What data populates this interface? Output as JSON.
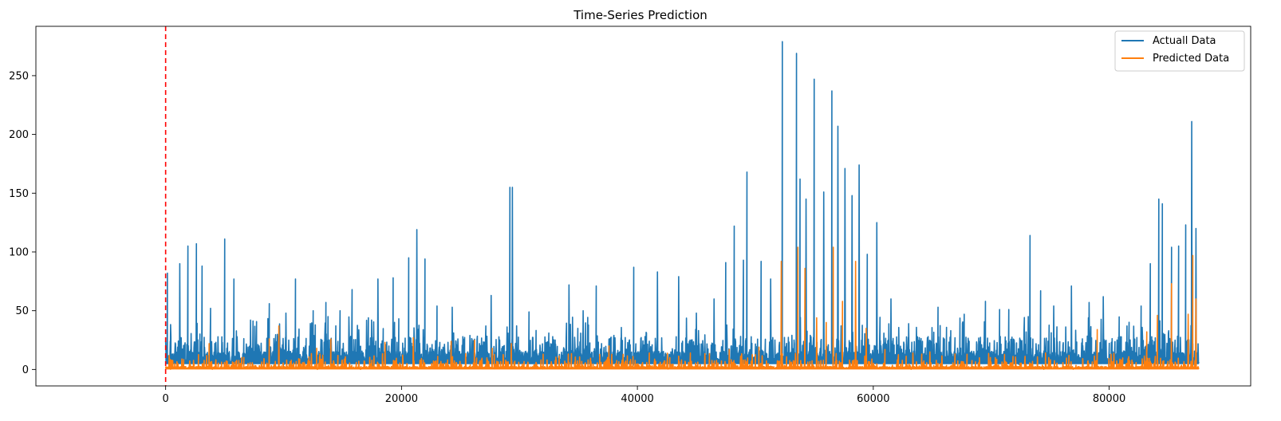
{
  "chart_data": {
    "type": "line",
    "title": "Time-Series Prediction",
    "xlabel": "",
    "ylabel": "",
    "xlim": [
      -11000,
      92000
    ],
    "ylim": [
      -14,
      292
    ],
    "x_ticks": [
      0,
      20000,
      40000,
      60000,
      80000
    ],
    "y_ticks": [
      0,
      50,
      100,
      150,
      200,
      250
    ],
    "grid": false,
    "legend_position": "top-right",
    "vline": {
      "x": 0,
      "color": "#ff0000",
      "style": "dashed"
    },
    "series": [
      {
        "name": "Actuall Data",
        "color": "#1f77b4",
        "x_range": [
          0,
          87600
        ],
        "baseline": 5,
        "noise_band": [
          3,
          45
        ],
        "peaks": [
          [
            150,
            82
          ],
          [
            1200,
            90
          ],
          [
            1900,
            105
          ],
          [
            2600,
            107
          ],
          [
            3100,
            88
          ],
          [
            3800,
            52
          ],
          [
            5000,
            111
          ],
          [
            5800,
            77
          ],
          [
            7200,
            42
          ],
          [
            8800,
            56
          ],
          [
            10200,
            48
          ],
          [
            11000,
            77
          ],
          [
            12500,
            50
          ],
          [
            13600,
            57
          ],
          [
            14800,
            50
          ],
          [
            15800,
            68
          ],
          [
            17200,
            44
          ],
          [
            18000,
            77
          ],
          [
            19300,
            78
          ],
          [
            20600,
            95
          ],
          [
            21300,
            119
          ],
          [
            22000,
            94
          ],
          [
            23000,
            54
          ],
          [
            24300,
            53
          ],
          [
            25800,
            29
          ],
          [
            27600,
            63
          ],
          [
            29200,
            155
          ],
          [
            29400,
            155
          ],
          [
            30800,
            49
          ],
          [
            32500,
            31
          ],
          [
            34200,
            72
          ],
          [
            35400,
            50
          ],
          [
            36500,
            71
          ],
          [
            38000,
            29
          ],
          [
            39700,
            87
          ],
          [
            41700,
            83
          ],
          [
            43500,
            79
          ],
          [
            45000,
            48
          ],
          [
            46500,
            60
          ],
          [
            47500,
            91
          ],
          [
            48200,
            122
          ],
          [
            49000,
            93
          ],
          [
            49300,
            168
          ],
          [
            50500,
            92
          ],
          [
            51300,
            77
          ],
          [
            52300,
            279
          ],
          [
            53500,
            269
          ],
          [
            53800,
            162
          ],
          [
            54300,
            145
          ],
          [
            55000,
            247
          ],
          [
            55800,
            151
          ],
          [
            56500,
            237
          ],
          [
            57000,
            207
          ],
          [
            57600,
            171
          ],
          [
            58200,
            148
          ],
          [
            58800,
            174
          ],
          [
            59500,
            98
          ],
          [
            60300,
            125
          ],
          [
            61500,
            60
          ],
          [
            63000,
            39
          ],
          [
            65500,
            53
          ],
          [
            67700,
            47
          ],
          [
            69500,
            58
          ],
          [
            70700,
            51
          ],
          [
            71500,
            51
          ],
          [
            73300,
            114
          ],
          [
            74200,
            67
          ],
          [
            75300,
            54
          ],
          [
            76800,
            71
          ],
          [
            78300,
            57
          ],
          [
            79500,
            62
          ],
          [
            81500,
            37
          ],
          [
            82700,
            54
          ],
          [
            83500,
            90
          ],
          [
            84200,
            145
          ],
          [
            84500,
            141
          ],
          [
            85300,
            104
          ],
          [
            85900,
            105
          ],
          [
            86500,
            123
          ],
          [
            87000,
            211
          ],
          [
            87350,
            120
          ]
        ]
      },
      {
        "name": "Predicted Data",
        "color": "#ff7f0e",
        "x_range": [
          0,
          87600
        ],
        "baseline": 0.5,
        "noise_band": [
          0,
          14
        ],
        "peaks": [
          [
            3700,
            22
          ],
          [
            8800,
            26
          ],
          [
            9600,
            37
          ],
          [
            12800,
            18
          ],
          [
            14000,
            26
          ],
          [
            18600,
            23
          ],
          [
            21000,
            27
          ],
          [
            24200,
            24
          ],
          [
            26200,
            25
          ],
          [
            27700,
            18
          ],
          [
            29300,
            22
          ],
          [
            32000,
            13
          ],
          [
            37600,
            20
          ],
          [
            41000,
            14
          ],
          [
            44500,
            14
          ],
          [
            47800,
            17
          ],
          [
            50300,
            19
          ],
          [
            52200,
            92
          ],
          [
            53600,
            104
          ],
          [
            54200,
            86
          ],
          [
            55200,
            44
          ],
          [
            56000,
            40
          ],
          [
            56600,
            104
          ],
          [
            57400,
            58
          ],
          [
            58500,
            92
          ],
          [
            59400,
            35
          ],
          [
            61000,
            17
          ],
          [
            64800,
            15
          ],
          [
            69000,
            10
          ],
          [
            74600,
            14
          ],
          [
            79000,
            34
          ],
          [
            83200,
            32
          ],
          [
            84100,
            46
          ],
          [
            85300,
            73
          ],
          [
            86700,
            47
          ],
          [
            87100,
            97
          ],
          [
            87350,
            60
          ]
        ]
      }
    ]
  }
}
